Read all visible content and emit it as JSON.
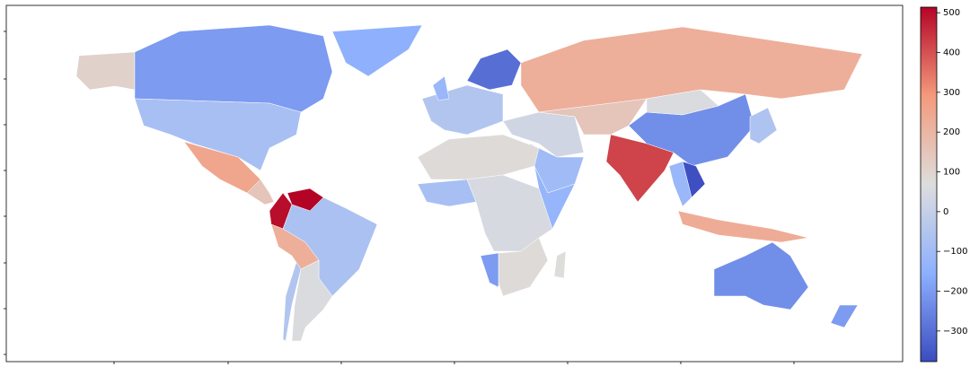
{
  "chart_data": {
    "type": "choropleth",
    "colormap": "coolwarm",
    "values": [
      110,
      -200,
      -150,
      -80,
      250,
      150,
      514,
      500,
      220,
      -70,
      60,
      -50,
      -50,
      -120,
      -300,
      220,
      30,
      -100,
      150,
      420,
      -230,
      60,
      -370,
      -120,
      -60,
      230,
      80,
      -80,
      50,
      -130,
      80,
      -200,
      70,
      -230,
      -200
    ],
    "clim": [
      -377,
      514
    ],
    "cticks": [
      {
        "value": -300,
        "label": "−300"
      },
      {
        "value": -200,
        "label": "−200"
      },
      {
        "value": -100,
        "label": "−100"
      },
      0,
      100,
      200,
      300,
      400,
      500
    ]
  }
}
